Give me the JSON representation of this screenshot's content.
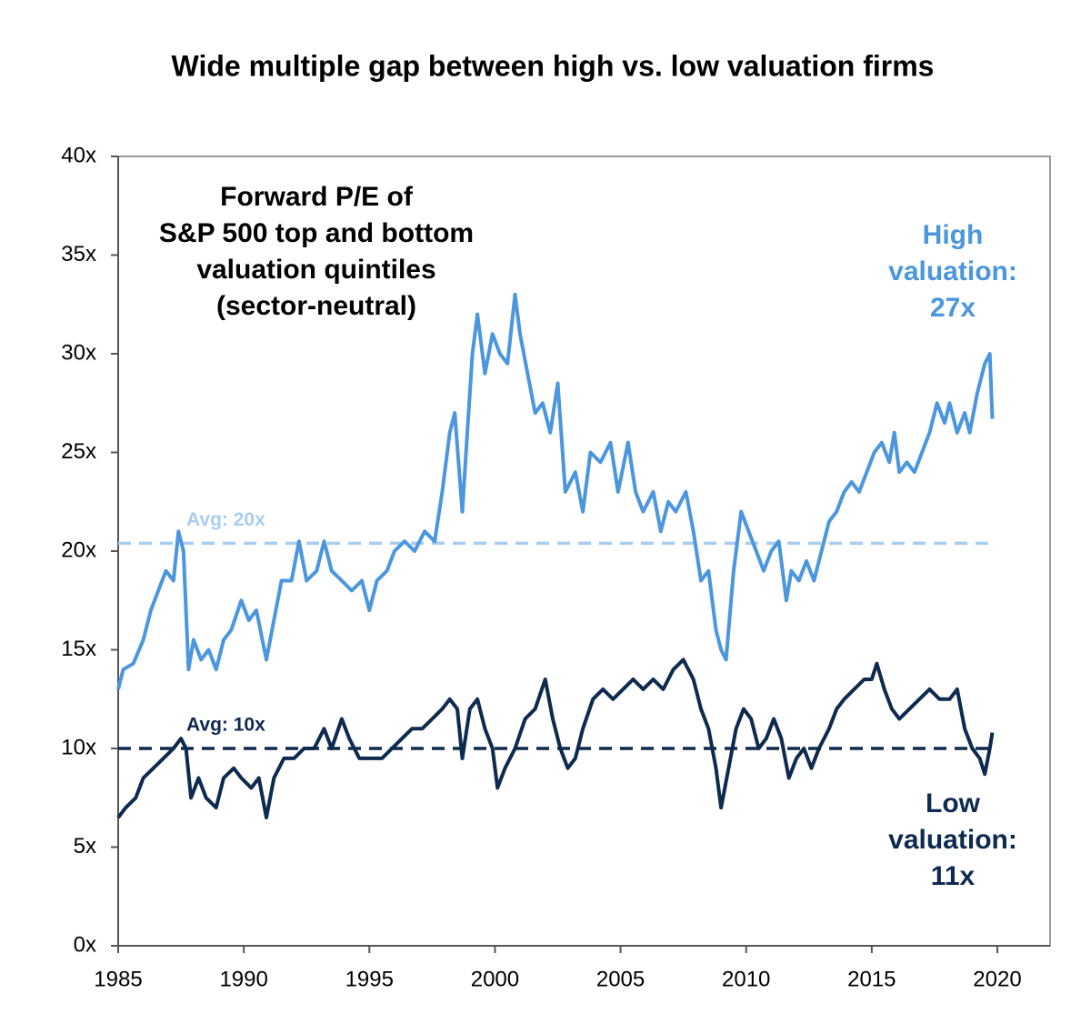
{
  "chart_data": {
    "type": "line",
    "title": "Wide multiple gap between high vs. low valuation firms",
    "xlim": [
      1985,
      2022.1
    ],
    "xticks": [
      1985,
      1990,
      1995,
      2000,
      2005,
      2010,
      2015,
      2020
    ],
    "ylim": [
      0,
      40
    ],
    "yticks": [
      {
        "value": 0,
        "label": "0x"
      },
      {
        "value": 5,
        "label": "5x"
      },
      {
        "value": 10,
        "label": "10x"
      },
      {
        "value": 15,
        "label": "15x"
      },
      {
        "value": 20,
        "label": "20x"
      },
      {
        "value": 25,
        "label": "25x"
      },
      {
        "value": 30,
        "label": "30x"
      },
      {
        "value": 35,
        "label": "35x"
      },
      {
        "value": 40,
        "label": "40x"
      }
    ],
    "reference_lines": [
      {
        "value": 20.4,
        "label": "Avg: 20x",
        "color": "#a9cdf0"
      },
      {
        "value": 10,
        "label": "Avg: 10x",
        "color": "#0e2a4f"
      }
    ],
    "annotations": [
      {
        "lines": [
          "Forward P/E of",
          "S&P 500 top and bottom",
          "valuation quintiles",
          "(sector-neutral)"
        ],
        "color": "#000000"
      },
      {
        "lines": [
          "High",
          "valuation:",
          "27x"
        ],
        "color": "#4b96dc"
      },
      {
        "lines": [
          "Low",
          "valuation:",
          "11x"
        ],
        "color": "#0e2a4f"
      }
    ],
    "series": [
      {
        "name": "High valuation",
        "color": "#4b96dc",
        "x": [
          1985.0,
          1985.2,
          1985.6,
          1986.0,
          1986.3,
          1986.6,
          1986.9,
          1987.2,
          1987.4,
          1987.6,
          1987.8,
          1988.0,
          1988.3,
          1988.6,
          1988.9,
          1989.2,
          1989.5,
          1989.9,
          1990.2,
          1990.5,
          1990.9,
          1991.2,
          1991.5,
          1991.9,
          1992.2,
          1992.5,
          1992.9,
          1993.2,
          1993.5,
          1993.9,
          1994.3,
          1994.7,
          1995.0,
          1995.3,
          1995.7,
          1996.0,
          1996.4,
          1996.8,
          1997.2,
          1997.6,
          1997.9,
          1998.2,
          1998.4,
          1998.7,
          1998.9,
          1999.1,
          1999.3,
          1999.6,
          1999.9,
          2000.2,
          2000.5,
          2000.8,
          2001.0,
          2001.3,
          2001.6,
          2001.9,
          2002.2,
          2002.5,
          2002.8,
          2003.2,
          2003.5,
          2003.8,
          2004.2,
          2004.6,
          2004.9,
          2005.3,
          2005.6,
          2005.9,
          2006.3,
          2006.6,
          2006.9,
          2007.2,
          2007.6,
          2007.9,
          2008.2,
          2008.5,
          2008.8,
          2009.0,
          2009.2,
          2009.5,
          2009.8,
          2010.1,
          2010.4,
          2010.7,
          2011.0,
          2011.3,
          2011.6,
          2011.8,
          2012.1,
          2012.4,
          2012.7,
          2013.0,
          2013.3,
          2013.6,
          2013.9,
          2014.2,
          2014.5,
          2014.8,
          2015.1,
          2015.4,
          2015.7,
          2015.9,
          2016.1,
          2016.4,
          2016.7,
          2017.0,
          2017.3,
          2017.6,
          2017.9,
          2018.1,
          2018.4,
          2018.7,
          2018.9,
          2019.2,
          2019.5,
          2019.7,
          2019.8
        ],
        "values": [
          13,
          14,
          14.3,
          15.5,
          17,
          18,
          19,
          18.5,
          21,
          20,
          14,
          15.5,
          14.5,
          15,
          14,
          15.5,
          16,
          17.5,
          16.5,
          17,
          14.5,
          16.5,
          18.5,
          18.5,
          20.5,
          18.5,
          19,
          20.5,
          19,
          18.5,
          18,
          18.5,
          17,
          18.5,
          19,
          20,
          20.5,
          20,
          21,
          20.5,
          23,
          26,
          27,
          22,
          26,
          30,
          32,
          29,
          31,
          30,
          29.5,
          33,
          31,
          29,
          27,
          27.5,
          26,
          28.5,
          23,
          24,
          22,
          25,
          24.5,
          25.5,
          23,
          25.5,
          23,
          22,
          23,
          21,
          22.5,
          22,
          23,
          21,
          18.5,
          19,
          16,
          15,
          14.5,
          19,
          22,
          21,
          20,
          19,
          20,
          20.5,
          17.5,
          19,
          18.5,
          19.5,
          18.5,
          20,
          21.5,
          22,
          23,
          23.5,
          23,
          24,
          25,
          25.5,
          24.5,
          26,
          24,
          24.5,
          24,
          25,
          26,
          27.5,
          26.5,
          27.5,
          26,
          27,
          26,
          28,
          29.5,
          30,
          26.7
        ]
      },
      {
        "name": "Low valuation",
        "color": "#0e2a4f",
        "x": [
          1985.0,
          1985.3,
          1985.7,
          1986.0,
          1986.4,
          1986.8,
          1987.2,
          1987.5,
          1987.7,
          1987.9,
          1988.2,
          1988.5,
          1988.9,
          1989.2,
          1989.6,
          1989.9,
          1990.3,
          1990.6,
          1990.9,
          1991.2,
          1991.6,
          1992.0,
          1992.4,
          1992.8,
          1993.2,
          1993.5,
          1993.9,
          1994.2,
          1994.6,
          1995.0,
          1995.5,
          1995.9,
          1996.3,
          1996.7,
          1997.1,
          1997.5,
          1997.9,
          1998.2,
          1998.5,
          1998.7,
          1999.0,
          1999.3,
          1999.6,
          1999.9,
          2000.1,
          2000.4,
          2000.8,
          2001.2,
          2001.6,
          2002.0,
          2002.3,
          2002.6,
          2002.9,
          2003.2,
          2003.5,
          2003.9,
          2004.3,
          2004.7,
          2005.1,
          2005.5,
          2005.9,
          2006.3,
          2006.7,
          2007.1,
          2007.5,
          2007.9,
          2008.2,
          2008.5,
          2008.8,
          2009.0,
          2009.3,
          2009.6,
          2009.9,
          2010.2,
          2010.5,
          2010.8,
          2011.1,
          2011.4,
          2011.7,
          2012.0,
          2012.3,
          2012.6,
          2012.9,
          2013.3,
          2013.6,
          2013.9,
          2014.3,
          2014.7,
          2015.0,
          2015.2,
          2015.5,
          2015.8,
          2016.1,
          2016.5,
          2016.9,
          2017.3,
          2017.7,
          2018.1,
          2018.4,
          2018.7,
          2019.0,
          2019.3,
          2019.5,
          2019.7,
          2019.8
        ],
        "values": [
          6.5,
          7,
          7.5,
          8.5,
          9,
          9.5,
          10,
          10.5,
          10,
          7.5,
          8.5,
          7.5,
          7,
          8.5,
          9,
          8.5,
          8,
          8.5,
          6.5,
          8.5,
          9.5,
          9.5,
          10,
          10,
          11,
          10,
          11.5,
          10.5,
          9.5,
          9.5,
          9.5,
          10,
          10.5,
          11,
          11,
          11.5,
          12,
          12.5,
          12,
          9.5,
          12,
          12.5,
          11,
          10,
          8,
          9,
          10,
          11.5,
          12,
          13.5,
          11.5,
          10,
          9,
          9.5,
          11,
          12.5,
          13,
          12.5,
          13,
          13.5,
          13,
          13.5,
          13,
          14,
          14.5,
          13.5,
          12,
          11,
          9,
          7,
          9,
          11,
          12,
          11.5,
          10,
          10.5,
          11.5,
          10.5,
          8.5,
          9.5,
          10,
          9,
          10,
          11,
          12,
          12.5,
          13,
          13.5,
          13.5,
          14.3,
          13,
          12,
          11.5,
          12,
          12.5,
          13,
          12.5,
          12.5,
          13,
          11,
          10,
          9.5,
          8.7,
          10,
          10.8
        ]
      }
    ]
  }
}
